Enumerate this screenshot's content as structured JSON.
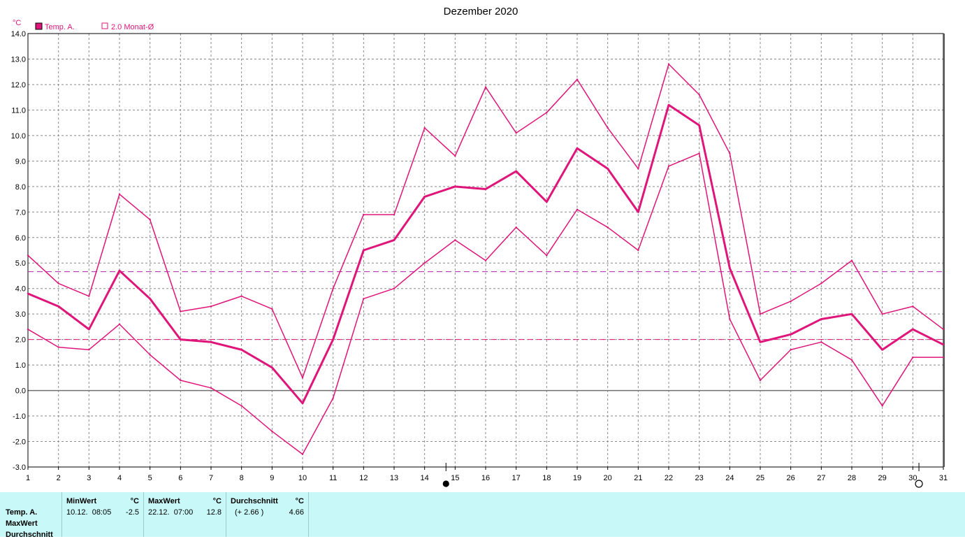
{
  "chart_data": {
    "type": "line",
    "title": "Dezember 2020",
    "ylabel": "°C",
    "ylim": [
      -3.0,
      14.0
    ],
    "yticks": [
      "14.0",
      "13.0",
      "12.0",
      "11.0",
      "10.0",
      "9.0",
      "8.0",
      "7.0",
      "6.0",
      "5.0",
      "4.0",
      "3.0",
      "2.0",
      "1.0",
      "0.0",
      "-1.0",
      "-2.0",
      "-3.0"
    ],
    "x": [
      1,
      2,
      3,
      4,
      5,
      6,
      7,
      8,
      9,
      10,
      11,
      12,
      13,
      14,
      15,
      16,
      17,
      18,
      19,
      20,
      21,
      22,
      23,
      24,
      25,
      26,
      27,
      28,
      29,
      30,
      31
    ],
    "legend": [
      {
        "label": "Temp. A.",
        "color": "#e0157a",
        "filled": true
      },
      {
        "label": "2.0 Monat-Ø",
        "color": "#e0157a",
        "filled": false
      }
    ],
    "series": [
      {
        "name": "Temp. A.",
        "color": "#e0157a",
        "width": 3,
        "values": [
          3.8,
          3.3,
          2.4,
          4.7,
          3.6,
          2.0,
          1.9,
          1.6,
          0.9,
          -0.5,
          2.0,
          5.5,
          5.9,
          7.6,
          8.0,
          7.9,
          8.6,
          7.4,
          9.5,
          8.7,
          7.0,
          11.2,
          10.4,
          4.8,
          1.9,
          2.2,
          2.8,
          3.0,
          1.6,
          2.4,
          1.8
        ]
      },
      {
        "name": "MaxWert",
        "color": "#e0157a",
        "width": 1.5,
        "values": [
          5.3,
          4.2,
          3.7,
          7.7,
          6.7,
          3.1,
          3.3,
          3.7,
          3.2,
          0.5,
          4.0,
          6.9,
          6.9,
          10.3,
          9.2,
          11.9,
          10.1,
          10.9,
          12.2,
          10.3,
          8.7,
          12.8,
          11.6,
          9.3,
          3.0,
          3.5,
          4.2,
          5.1,
          3.0,
          3.3,
          2.4
        ]
      },
      {
        "name": "MinWert",
        "color": "#e0157a",
        "width": 1.5,
        "values": [
          2.4,
          1.7,
          1.6,
          2.6,
          1.4,
          0.4,
          0.1,
          -0.6,
          -1.6,
          -2.5,
          -0.3,
          3.6,
          4.0,
          5.0,
          5.9,
          5.1,
          6.4,
          5.3,
          7.1,
          6.4,
          5.5,
          8.8,
          9.3,
          2.8,
          0.4,
          1.6,
          1.9,
          1.2,
          -0.6,
          1.3,
          1.3
        ]
      }
    ],
    "reference_lines": [
      {
        "value": 4.66,
        "color": "#b020b0",
        "style": "dashed"
      },
      {
        "value": 2.0,
        "color": "#e0157a",
        "style": "dashed"
      }
    ],
    "grid": true,
    "markers": [
      {
        "symbol": "full-moon",
        "x": 14.7
      },
      {
        "symbol": "new-moon",
        "x": 30.2
      }
    ]
  },
  "stats": {
    "rows": [
      "Temp. A.",
      "MaxWert",
      "Durchschnitt"
    ],
    "minwert": {
      "head": "MinWert",
      "unit": "°C",
      "datetime": "10.12.  08:05",
      "value": "-2.5"
    },
    "maxwert": {
      "head": "MaxWert",
      "unit": "°C",
      "datetime": "22.12.  07:00",
      "value": "12.8"
    },
    "durchschnitt": {
      "head": "Durchschnitt",
      "unit": "°C",
      "delta": "(+ 2.66 )",
      "value": "4.66"
    }
  }
}
